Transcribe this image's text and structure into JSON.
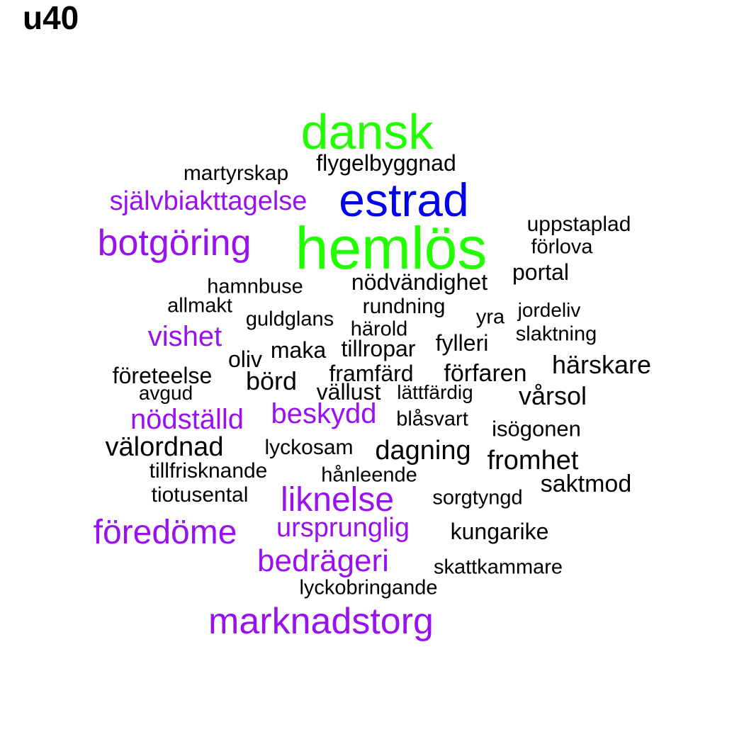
{
  "title": "u40",
  "palette": {
    "green": "#22ff00",
    "blue": "#0000ee",
    "purple": "#9911ee",
    "black": "#000000"
  },
  "words": [
    {
      "text": "hemlös",
      "color": "green"
    },
    {
      "text": "dansk",
      "color": "green"
    },
    {
      "text": "estrad",
      "color": "blue"
    },
    {
      "text": "marknadstorg",
      "color": "purple"
    },
    {
      "text": "botgöring",
      "color": "purple"
    },
    {
      "text": "föredöme",
      "color": "purple"
    },
    {
      "text": "liknelse",
      "color": "purple"
    },
    {
      "text": "bedrägeri",
      "color": "purple"
    },
    {
      "text": "nödställd",
      "color": "purple"
    },
    {
      "text": "självbiakttagelse",
      "color": "purple"
    },
    {
      "text": "vishet",
      "color": "purple"
    },
    {
      "text": "ursprunglig",
      "color": "purple"
    },
    {
      "text": "beskydd",
      "color": "purple"
    },
    {
      "text": "flygelbyggnad",
      "color": "black"
    },
    {
      "text": "martyrskap",
      "color": "black"
    },
    {
      "text": "uppstaplad",
      "color": "black"
    },
    {
      "text": "förlova",
      "color": "black"
    },
    {
      "text": "portal",
      "color": "black"
    },
    {
      "text": "nödvändighet",
      "color": "black"
    },
    {
      "text": "hamnbuse",
      "color": "black"
    },
    {
      "text": "allmakt",
      "color": "black"
    },
    {
      "text": "rundning",
      "color": "black"
    },
    {
      "text": "guldglans",
      "color": "black"
    },
    {
      "text": "yra",
      "color": "black"
    },
    {
      "text": "jordeliv",
      "color": "black"
    },
    {
      "text": "härold",
      "color": "black"
    },
    {
      "text": "slaktning",
      "color": "black"
    },
    {
      "text": "fylleri",
      "color": "black"
    },
    {
      "text": "maka",
      "color": "black"
    },
    {
      "text": "tillropar",
      "color": "black"
    },
    {
      "text": "oliv",
      "color": "black"
    },
    {
      "text": "härskare",
      "color": "black"
    },
    {
      "text": "företeelse",
      "color": "black"
    },
    {
      "text": "framfärd",
      "color": "black"
    },
    {
      "text": "förfaren",
      "color": "black"
    },
    {
      "text": "börd",
      "color": "black"
    },
    {
      "text": "avgud",
      "color": "black"
    },
    {
      "text": "vällust",
      "color": "black"
    },
    {
      "text": "lättfärdig",
      "color": "black"
    },
    {
      "text": "vårsol",
      "color": "black"
    },
    {
      "text": "blåsvart",
      "color": "black"
    },
    {
      "text": "isögonen",
      "color": "black"
    },
    {
      "text": "välordnad",
      "color": "black"
    },
    {
      "text": "lyckosam",
      "color": "black"
    },
    {
      "text": "dagning",
      "color": "black"
    },
    {
      "text": "fromhet",
      "color": "black"
    },
    {
      "text": "tillfrisknande",
      "color": "black"
    },
    {
      "text": "hånleende",
      "color": "black"
    },
    {
      "text": "saktmod",
      "color": "black"
    },
    {
      "text": "tiotusental",
      "color": "black"
    },
    {
      "text": "sorgtyngd",
      "color": "black"
    },
    {
      "text": "kungarike",
      "color": "black"
    },
    {
      "text": "skattkammare",
      "color": "black"
    },
    {
      "text": "lyckobringande",
      "color": "black"
    }
  ]
}
